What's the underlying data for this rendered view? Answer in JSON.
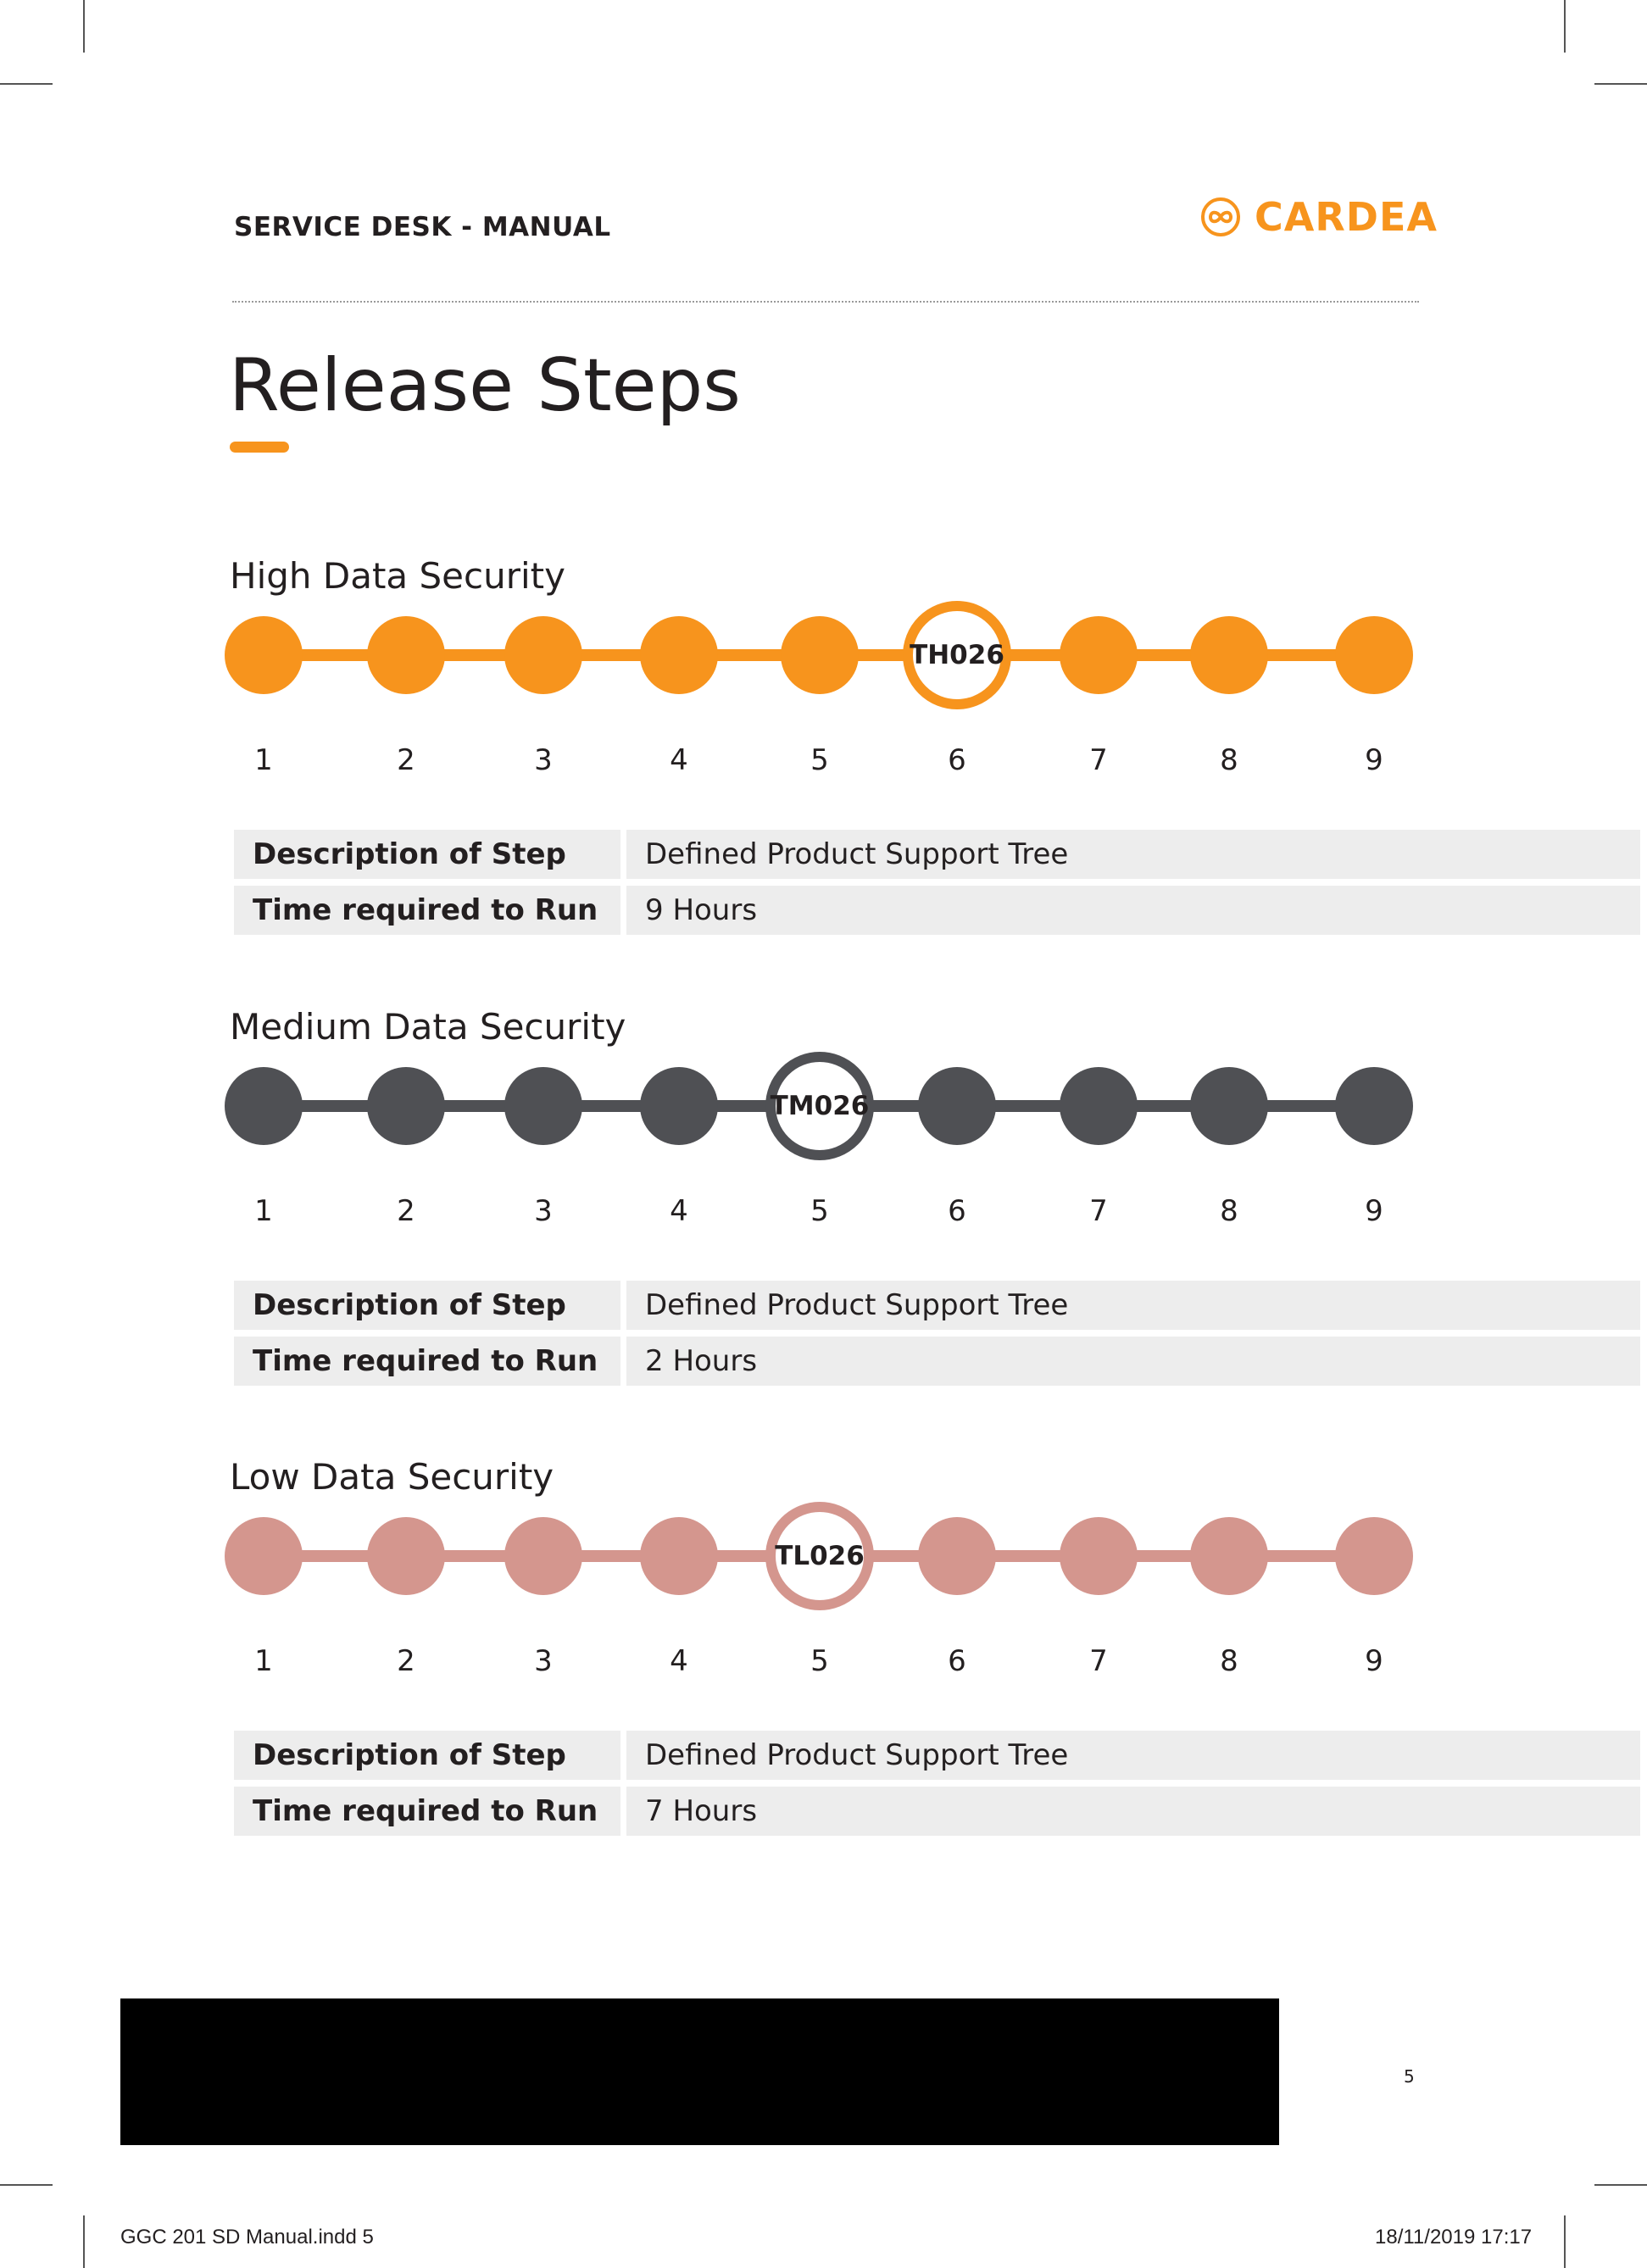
{
  "header": {
    "title": "SERVICE DESK - MANUAL",
    "logo_text": "CARDEA",
    "logo_icon": "infinity-icon"
  },
  "page_title": "Release Steps",
  "colors": {
    "high": "#f7941d",
    "medium": "#4f5054",
    "low": "#d4968e",
    "cell_bg": "#ededed"
  },
  "sections": [
    {
      "title": "High Data Security",
      "highlight_step": 6,
      "highlight_label": "TH026",
      "steps": [
        "1",
        "2",
        "3",
        "4",
        "5",
        "6",
        "7",
        "8",
        "9"
      ],
      "desc_label": "Description of Step",
      "desc_value": "Defined Product Support Tree",
      "time_label": "Time required to Run",
      "time_value": "9 Hours"
    },
    {
      "title": "Medium Data Security",
      "highlight_step": 5,
      "highlight_label": "TM026",
      "steps": [
        "1",
        "2",
        "3",
        "4",
        "5",
        "6",
        "7",
        "8",
        "9"
      ],
      "desc_label": "Description of Step",
      "desc_value": "Defined Product Support Tree",
      "time_label": "Time required to Run",
      "time_value": "2 Hours"
    },
    {
      "title": "Low Data Security",
      "highlight_step": 5,
      "highlight_label": "TL026",
      "steps": [
        "1",
        "2",
        "3",
        "4",
        "5",
        "6",
        "7",
        "8",
        "9"
      ],
      "desc_label": "Description of Step",
      "desc_value": "Defined Product Support Tree",
      "time_label": "Time required to Run",
      "time_value": "7 Hours"
    }
  ],
  "page_number": "5",
  "footer": {
    "file": "GGC 201 SD Manual.indd   5",
    "datetime": "18/11/2019   17:17"
  }
}
